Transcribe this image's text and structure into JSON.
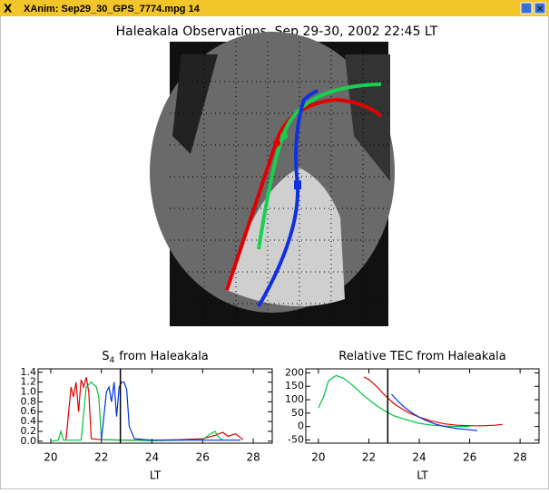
{
  "window": {
    "title": "XAnim: Sep29_30_GPS_7774.mpg 14"
  },
  "title": "Haleakala Observations, Sep 29-30, 2002 22:45 LT",
  "chart_data": [
    {
      "type": "line",
      "title": "S",
      "title_subscript": "4",
      "title_suffix": "from Haleakala",
      "xlabel": "LT",
      "xlim": [
        19.5,
        28.75
      ],
      "xticks": [
        20,
        22,
        24,
        26,
        28
      ],
      "ylim": [
        -0.04,
        1.47
      ],
      "yticks": [
        {
          "value": 0,
          "label": "0.0"
        },
        0.2,
        0.4,
        0.6,
        0.8,
        {
          "value": 1,
          "label": "1.0"
        },
        1.2,
        1.4
      ],
      "marker_x": 22.75,
      "series": [
        {
          "color": "#e00000",
          "x": [
            20.6,
            20.8,
            20.9,
            21.0,
            21.1,
            21.2,
            21.3,
            21.4,
            21.5,
            21.6,
            22.0,
            23,
            24,
            25,
            26,
            26.5,
            26.8,
            27.0,
            27.3,
            27.6
          ],
          "values": [
            0.02,
            1.1,
            0.9,
            1.2,
            0.6,
            1.25,
            1.1,
            1.3,
            1.0,
            0.05,
            0.03,
            0.02,
            0.02,
            0.03,
            0.05,
            0.12,
            0.18,
            0.1,
            0.15,
            0.03
          ]
        },
        {
          "color": "#00c040",
          "x": [
            20.0,
            20.3,
            20.4,
            20.5,
            20.8,
            21.2,
            21.4,
            21.6,
            21.8,
            21.9,
            22.0,
            23,
            24,
            25,
            26,
            26.3,
            26.5,
            26.6,
            26.8
          ],
          "values": [
            0.0,
            0.02,
            0.2,
            0.02,
            0.02,
            0.02,
            1.1,
            1.2,
            1.1,
            0.9,
            0.03,
            0.02,
            0.01,
            0.02,
            0.03,
            0.15,
            0.2,
            0.1,
            0.02
          ]
        },
        {
          "color": "#0030e0",
          "x": [
            22.0,
            22.2,
            22.3,
            22.4,
            22.5,
            22.6,
            22.7,
            22.8,
            22.9,
            23.0,
            23.1,
            23.3,
            24,
            25,
            26,
            27,
            27.5
          ],
          "values": [
            0.02,
            1.0,
            1.1,
            0.8,
            1.2,
            0.5,
            1.1,
            1.2,
            1.2,
            1.05,
            0.3,
            0.05,
            0.02,
            0.02,
            0.02,
            0.02,
            0.02
          ]
        }
      ]
    },
    {
      "type": "line",
      "title": "Relative TEC from Haleakala",
      "xlabel": "LT",
      "xlim": [
        19.5,
        28.75
      ],
      "xticks": [
        20,
        22,
        24,
        26,
        28
      ],
      "ylim": [
        -62,
        215
      ],
      "yticks": [
        -50,
        0,
        50,
        100,
        150,
        200
      ],
      "marker_x": 22.75,
      "series": [
        {
          "color": "#e00000",
          "x": [
            21.8,
            22.0,
            22.3,
            22.6,
            23,
            23.5,
            24,
            24.5,
            25,
            25.5,
            26,
            26.5,
            27,
            27.3
          ],
          "values": [
            185,
            175,
            150,
            120,
            85,
            55,
            35,
            20,
            10,
            5,
            3,
            3,
            5,
            8
          ]
        },
        {
          "color": "#00c040",
          "x": [
            20.0,
            20.2,
            20.4,
            20.7,
            21.0,
            21.4,
            21.8,
            22.2,
            22.6,
            23,
            23.5,
            24,
            24.5,
            25,
            25.5,
            26
          ],
          "values": [
            70,
            110,
            170,
            190,
            180,
            150,
            115,
            85,
            60,
            40,
            25,
            12,
            5,
            2,
            0,
            0
          ]
        },
        {
          "color": "#0030e0",
          "x": [
            22.9,
            23.2,
            23.5,
            23.8,
            24.2,
            24.6,
            25,
            25.5,
            26,
            26.3
          ],
          "values": [
            120,
            90,
            65,
            45,
            25,
            10,
            0,
            -8,
            -12,
            -15
          ]
        }
      ]
    }
  ]
}
